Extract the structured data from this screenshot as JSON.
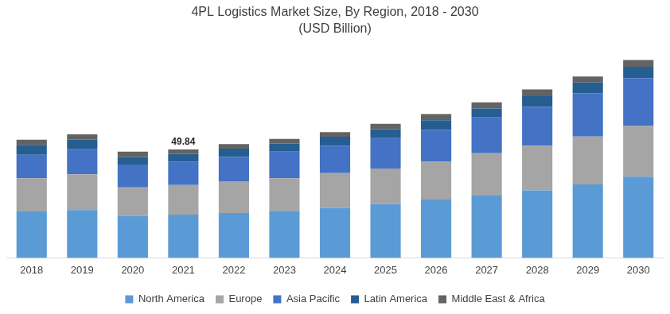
{
  "chart_data": {
    "type": "bar",
    "title": "4PL Logistics Market Size, By Region, 2018 - 2030",
    "subtitle": "(USD Billion)",
    "categories": [
      "2018",
      "2019",
      "2020",
      "2021",
      "2022",
      "2023",
      "2024",
      "2025",
      "2026",
      "2027",
      "2028",
      "2029",
      "2030"
    ],
    "series": [
      {
        "name": "North America",
        "color": "#5b9bd5",
        "values": [
          21.3,
          22.0,
          19.2,
          19.9,
          20.6,
          21.6,
          23.0,
          24.7,
          26.8,
          28.9,
          31.0,
          33.8,
          37.3
        ]
      },
      {
        "name": "Europe",
        "color": "#a5a5a5",
        "values": [
          15.3,
          16.4,
          13.2,
          13.6,
          14.6,
          15.0,
          16.0,
          16.4,
          17.4,
          19.2,
          20.6,
          22.0,
          23.3
        ]
      },
      {
        "name": "Asia Pacific",
        "color": "#4472c4",
        "values": [
          10.8,
          11.5,
          10.5,
          10.8,
          11.2,
          12.2,
          12.5,
          13.9,
          14.6,
          16.4,
          17.8,
          19.9,
          22.0
        ]
      },
      {
        "name": "Latin America",
        "color": "#255e91",
        "values": [
          4.5,
          4.5,
          3.5,
          3.5,
          3.8,
          3.8,
          4.2,
          4.2,
          4.5,
          4.2,
          4.9,
          4.9,
          5.2
        ]
      },
      {
        "name": "Middle East & Africa",
        "color": "#636363",
        "values": [
          2.4,
          2.4,
          2.4,
          2.04,
          2.1,
          2.1,
          2.1,
          2.4,
          2.8,
          2.8,
          3.1,
          2.8,
          3.1
        ]
      }
    ],
    "stacked": true,
    "ylim": [
      0,
      95
    ],
    "tick_labels": "x",
    "grid": false,
    "legend": "bottom",
    "annotations": [
      {
        "category": "2021",
        "text": "49.84"
      }
    ]
  }
}
